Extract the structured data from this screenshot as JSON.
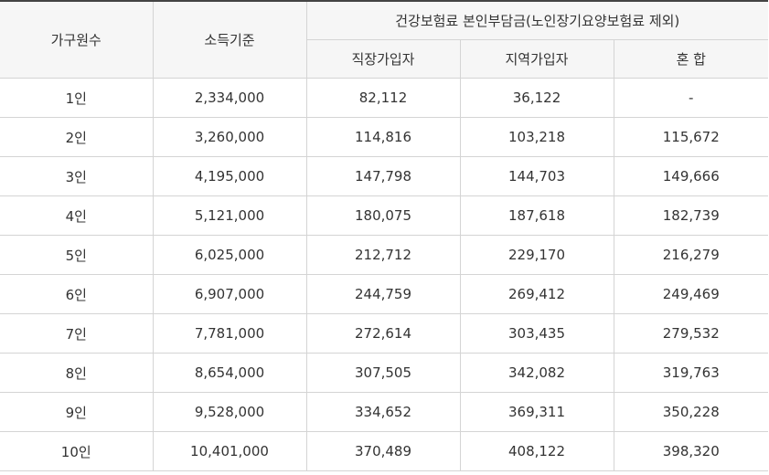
{
  "table": {
    "headers": {
      "household": "가구원수",
      "income": "소득기준",
      "premium_group": "건강보험료 본인부담금(노인장기요양보험료 제외)",
      "employee": "직장가입자",
      "regional": "지역가입자",
      "mixed": "혼 합"
    },
    "rows": [
      [
        "1인",
        "2,334,000",
        "82,112",
        "36,122",
        "-"
      ],
      [
        "2인",
        "3,260,000",
        "114,816",
        "103,218",
        "115,672"
      ],
      [
        "3인",
        "4,195,000",
        "147,798",
        "144,703",
        "149,666"
      ],
      [
        "4인",
        "5,121,000",
        "180,075",
        "187,618",
        "182,739"
      ],
      [
        "5인",
        "6,025,000",
        "212,712",
        "229,170",
        "216,279"
      ],
      [
        "6인",
        "6,907,000",
        "244,759",
        "269,412",
        "249,469"
      ],
      [
        "7인",
        "7,781,000",
        "272,614",
        "303,435",
        "279,532"
      ],
      [
        "8인",
        "8,654,000",
        "307,505",
        "342,082",
        "319,763"
      ],
      [
        "9인",
        "9,528,000",
        "334,652",
        "369,311",
        "350,228"
      ],
      [
        "10인",
        "10,401,000",
        "370,489",
        "408,122",
        "398,320"
      ]
    ]
  }
}
